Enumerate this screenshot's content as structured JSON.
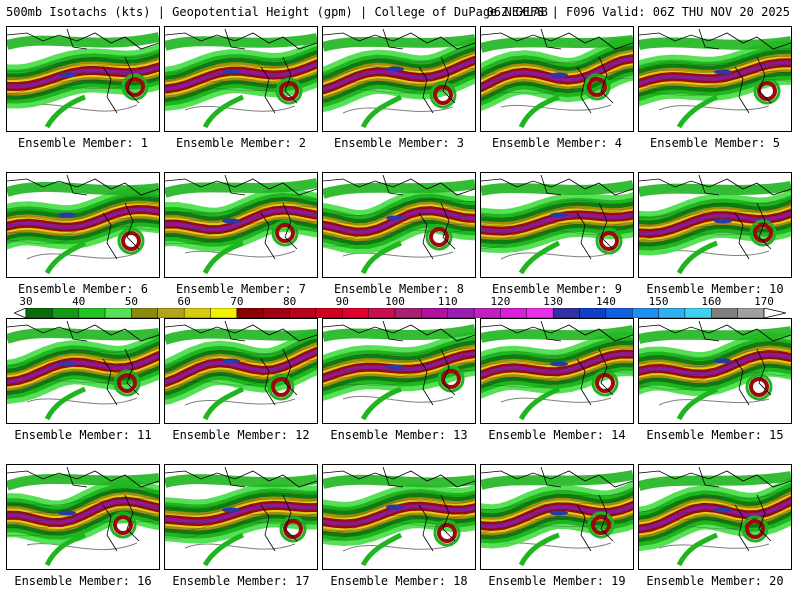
{
  "header": {
    "title_left": "500mb Isotachs (kts) | Geopotential Height (gpm) | College of DuPage NEXLAB",
    "title_right": "06Z GEFS | F096 Valid: 06Z THU NOV 20 2025"
  },
  "members": [
    {
      "label": "Ensemble Member: 1"
    },
    {
      "label": "Ensemble Member: 2"
    },
    {
      "label": "Ensemble Member: 3"
    },
    {
      "label": "Ensemble Member: 4"
    },
    {
      "label": "Ensemble Member: 5"
    },
    {
      "label": "Ensemble Member: 6"
    },
    {
      "label": "Ensemble Member: 7"
    },
    {
      "label": "Ensemble Member: 8"
    },
    {
      "label": "Ensemble Member: 9"
    },
    {
      "label": "Ensemble Member: 10"
    },
    {
      "label": "Ensemble Member: 11"
    },
    {
      "label": "Ensemble Member: 12"
    },
    {
      "label": "Ensemble Member: 13"
    },
    {
      "label": "Ensemble Member: 14"
    },
    {
      "label": "Ensemble Member: 15"
    },
    {
      "label": "Ensemble Member: 16"
    },
    {
      "label": "Ensemble Member: 17"
    },
    {
      "label": "Ensemble Member: 18"
    },
    {
      "label": "Ensemble Member: 19"
    },
    {
      "label": "Ensemble Member: 20"
    }
  ],
  "colorbar": {
    "min": 30,
    "max": 170,
    "labels": [
      "30",
      "40",
      "50",
      "60",
      "70",
      "80",
      "90",
      "100",
      "110",
      "120",
      "130",
      "140",
      "150",
      "160",
      "170"
    ],
    "colors": [
      "#0b6b0b",
      "#169a16",
      "#22c422",
      "#55e055",
      "#8a8a10",
      "#b4a21a",
      "#d8cc10",
      "#f2f200",
      "#8b0000",
      "#a10010",
      "#b80018",
      "#d2001c",
      "#e00030",
      "#c81050",
      "#a82070",
      "#b010a0",
      "#9b1fae",
      "#c020c0",
      "#d820d8",
      "#e830e8",
      "#3030a0",
      "#1040c8",
      "#1060e0",
      "#2090f0",
      "#30b0f0",
      "#40d0f0",
      "#808080",
      "#a0a0a0"
    ]
  },
  "map_colors": {
    "green_dark": "#0f7a0f",
    "green": "#1fb51f",
    "green_light": "#44dd44",
    "olive": "#a08c10",
    "yellow": "#e0cc10",
    "red": "#9b0a0a",
    "purple": "#8a1a9a",
    "blue": "#2a3aa8",
    "coast": "#000000",
    "height": "#808080"
  }
}
